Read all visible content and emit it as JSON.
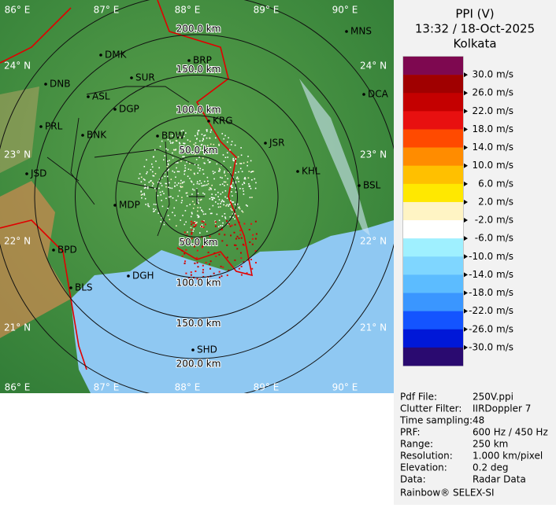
{
  "header": {
    "title": "PPI (V)",
    "time": "13:32 / 18-Oct-2025",
    "station": "Kolkata"
  },
  "legend": {
    "labels": [
      "30.0 m/s",
      "26.0 m/s",
      "22.0 m/s",
      "18.0 m/s",
      "14.0 m/s",
      "10.0 m/s",
      "6.0 m/s",
      "2.0 m/s",
      "-2.0 m/s",
      "-6.0 m/s",
      "-10.0 m/s",
      "-14.0 m/s",
      "-18.0 m/s",
      "-22.0 m/s",
      "-26.0 m/s",
      "-30.0 m/s"
    ],
    "colors": [
      "#7e0850",
      "#a00000",
      "#c40000",
      "#e81010",
      "#ff4a00",
      "#ff8c00",
      "#ffc000",
      "#ffe800",
      "#fff4c4",
      "#ffffff",
      "#9ff0ff",
      "#7fd6ff",
      "#5cbcff",
      "#3a96ff",
      "#1454ff",
      "#0018d8",
      "#2a0a70"
    ]
  },
  "map": {
    "lon_labels": [
      "86° E",
      "87° E",
      "88° E",
      "89° E",
      "90° E"
    ],
    "lat_labels": [
      "24° N",
      "23° N",
      "22° N",
      "21° N"
    ],
    "range_labels": [
      "50.0 km",
      "100.0 km",
      "150.0 km",
      "200.0 km"
    ],
    "cities": [
      "MNS",
      "DMK",
      "BRP",
      "DNB",
      "SUR",
      "ASL",
      "DCA",
      "DGP",
      "KRG",
      "PRL",
      "BNK",
      "BDW",
      "JSR",
      "KHL",
      "JSD",
      "BSL",
      "MDP",
      "BPD",
      "DGH",
      "BLS",
      "SHD"
    ]
  },
  "info": {
    "rows": [
      [
        "Pdf File:",
        "250V.ppi"
      ],
      [
        "Clutter Filter:",
        "IIRDoppler 7"
      ],
      [
        "Time sampling:",
        "48"
      ],
      [
        "PRF:",
        "600 Hz / 450 Hz"
      ],
      [
        "Range:",
        "250 km"
      ],
      [
        "Resolution:",
        "1.000 km/pixel"
      ],
      [
        "Elevation:",
        "0.2 deg"
      ],
      [
        "Data:",
        "Radar Data"
      ]
    ],
    "footer": "Rainbow® SELEX-SI"
  }
}
